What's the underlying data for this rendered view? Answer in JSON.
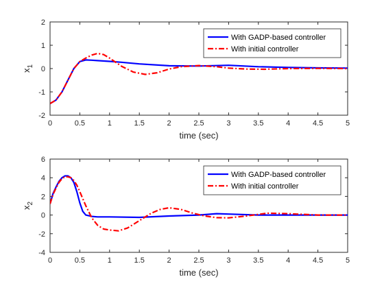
{
  "chart_data": [
    {
      "type": "line",
      "xlabel": "time (sec)",
      "ylabel": "x",
      "ylabel_sub": "1",
      "xlim": [
        0,
        5
      ],
      "ylim": [
        -2,
        2
      ],
      "xticks": [
        0,
        0.5,
        1,
        1.5,
        2,
        2.5,
        3,
        3.5,
        4,
        4.5,
        5
      ],
      "yticks": [
        -2,
        -1,
        0,
        1,
        2
      ],
      "grid": false,
      "legend_position": "top-right",
      "series": [
        {
          "name": "With GADP-based controller",
          "color": "#0000ff",
          "style": "solid",
          "x": [
            0,
            0.1,
            0.2,
            0.3,
            0.4,
            0.5,
            0.6,
            0.7,
            0.8,
            1.0,
            1.2,
            1.5,
            2.0,
            2.5,
            3.0,
            3.5,
            4.0,
            4.5,
            5.0
          ],
          "y": [
            -1.5,
            -1.35,
            -1.0,
            -0.5,
            0.0,
            0.3,
            0.37,
            0.36,
            0.34,
            0.31,
            0.27,
            0.2,
            0.12,
            0.11,
            0.14,
            0.08,
            0.05,
            0.03,
            0.02
          ]
        },
        {
          "name": "With initial controller",
          "color": "#ff0000",
          "style": "dashdot",
          "x": [
            0,
            0.1,
            0.2,
            0.3,
            0.4,
            0.5,
            0.6,
            0.7,
            0.8,
            0.9,
            1.0,
            1.2,
            1.4,
            1.6,
            1.8,
            2.0,
            2.2,
            2.5,
            2.8,
            3.0,
            3.3,
            3.6,
            4.0,
            4.5,
            5.0
          ],
          "y": [
            -1.5,
            -1.35,
            -1.0,
            -0.5,
            0.0,
            0.3,
            0.45,
            0.58,
            0.65,
            0.6,
            0.45,
            0.1,
            -0.15,
            -0.25,
            -0.18,
            -0.02,
            0.08,
            0.13,
            0.08,
            0.02,
            -0.02,
            -0.03,
            0.0,
            0.01,
            0.0
          ]
        }
      ]
    },
    {
      "type": "line",
      "xlabel": "time (sec)",
      "ylabel": "x",
      "ylabel_sub": "2",
      "xlim": [
        0,
        5
      ],
      "ylim": [
        -4,
        6
      ],
      "xticks": [
        0,
        0.5,
        1,
        1.5,
        2,
        2.5,
        3,
        3.5,
        4,
        4.5,
        5
      ],
      "yticks": [
        -4,
        -2,
        0,
        2,
        4,
        6
      ],
      "grid": false,
      "legend_position": "top-right",
      "series": [
        {
          "name": "With GADP-based controller",
          "color": "#0000ff",
          "style": "solid",
          "x": [
            0,
            0.05,
            0.1,
            0.15,
            0.2,
            0.25,
            0.3,
            0.35,
            0.4,
            0.45,
            0.5,
            0.55,
            0.6,
            0.7,
            0.8,
            1.0,
            1.5,
            2.0,
            2.5,
            2.8,
            3.0,
            3.5,
            4.0,
            4.5,
            5.0
          ],
          "y": [
            1.2,
            2.3,
            3.0,
            3.6,
            4.0,
            4.2,
            4.2,
            4.0,
            3.5,
            2.5,
            1.3,
            0.4,
            0.0,
            -0.15,
            -0.2,
            -0.2,
            -0.25,
            -0.1,
            0.0,
            0.15,
            0.1,
            0.0,
            0.0,
            0.0,
            0.0
          ]
        },
        {
          "name": "With initial controller",
          "color": "#ff0000",
          "style": "dashdot",
          "x": [
            0,
            0.05,
            0.1,
            0.15,
            0.2,
            0.25,
            0.3,
            0.35,
            0.4,
            0.45,
            0.5,
            0.6,
            0.7,
            0.8,
            0.9,
            1.0,
            1.15,
            1.3,
            1.5,
            1.7,
            1.85,
            2.0,
            2.2,
            2.4,
            2.6,
            2.8,
            3.0,
            3.3,
            3.65,
            4.0,
            4.5,
            5.0
          ],
          "y": [
            1.2,
            2.2,
            2.9,
            3.5,
            3.9,
            4.1,
            4.1,
            4.0,
            3.7,
            3.2,
            2.5,
            1.0,
            -0.3,
            -1.1,
            -1.5,
            -1.6,
            -1.7,
            -1.4,
            -0.6,
            0.2,
            0.6,
            0.78,
            0.6,
            0.2,
            -0.1,
            -0.28,
            -0.3,
            -0.1,
            0.2,
            0.15,
            0.0,
            0.0
          ]
        }
      ]
    }
  ]
}
